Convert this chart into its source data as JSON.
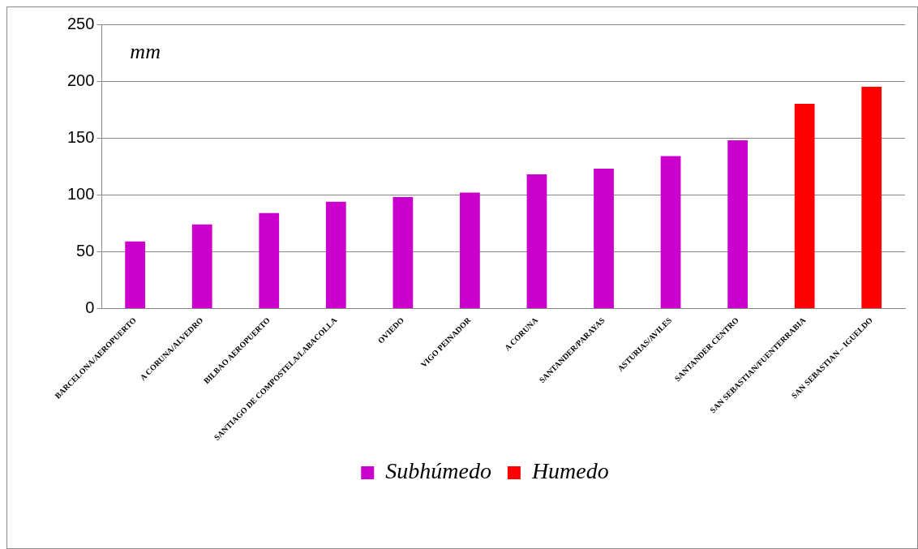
{
  "chart_data": {
    "type": "bar",
    "ylabel": "mm",
    "categories": [
      "BARCELONA/AEROPUERTO",
      "A CORUNA/ALVEDRO",
      "BILBAO AEROPUERTO",
      "SANTIAGO DE COMPOSTELA/LABACOLLA",
      "OVIEDO",
      "VIGO PEINADOR",
      "A CORUNA",
      "SANTANDER/PARAYAS",
      "ASTURIAS/AVILES",
      "SANTANDER CENTRO",
      "SAN SEBASTIAN/FUENTERRABIA",
      "SAN SEBASTIAN – IGUELDO"
    ],
    "series": [
      {
        "name": "Subhúmedo",
        "color": "#cc00cc",
        "values": [
          59,
          74,
          84,
          94,
          98,
          102,
          118,
          123,
          134,
          148,
          null,
          null
        ]
      },
      {
        "name": "Humedo",
        "color": "#ff0000",
        "values": [
          null,
          null,
          null,
          null,
          null,
          null,
          null,
          null,
          null,
          null,
          180,
          195
        ]
      }
    ],
    "ylim": [
      0,
      250
    ],
    "yticks": [
      0,
      50,
      100,
      150,
      200,
      250
    ],
    "grid": "y",
    "legend": "bottom"
  }
}
